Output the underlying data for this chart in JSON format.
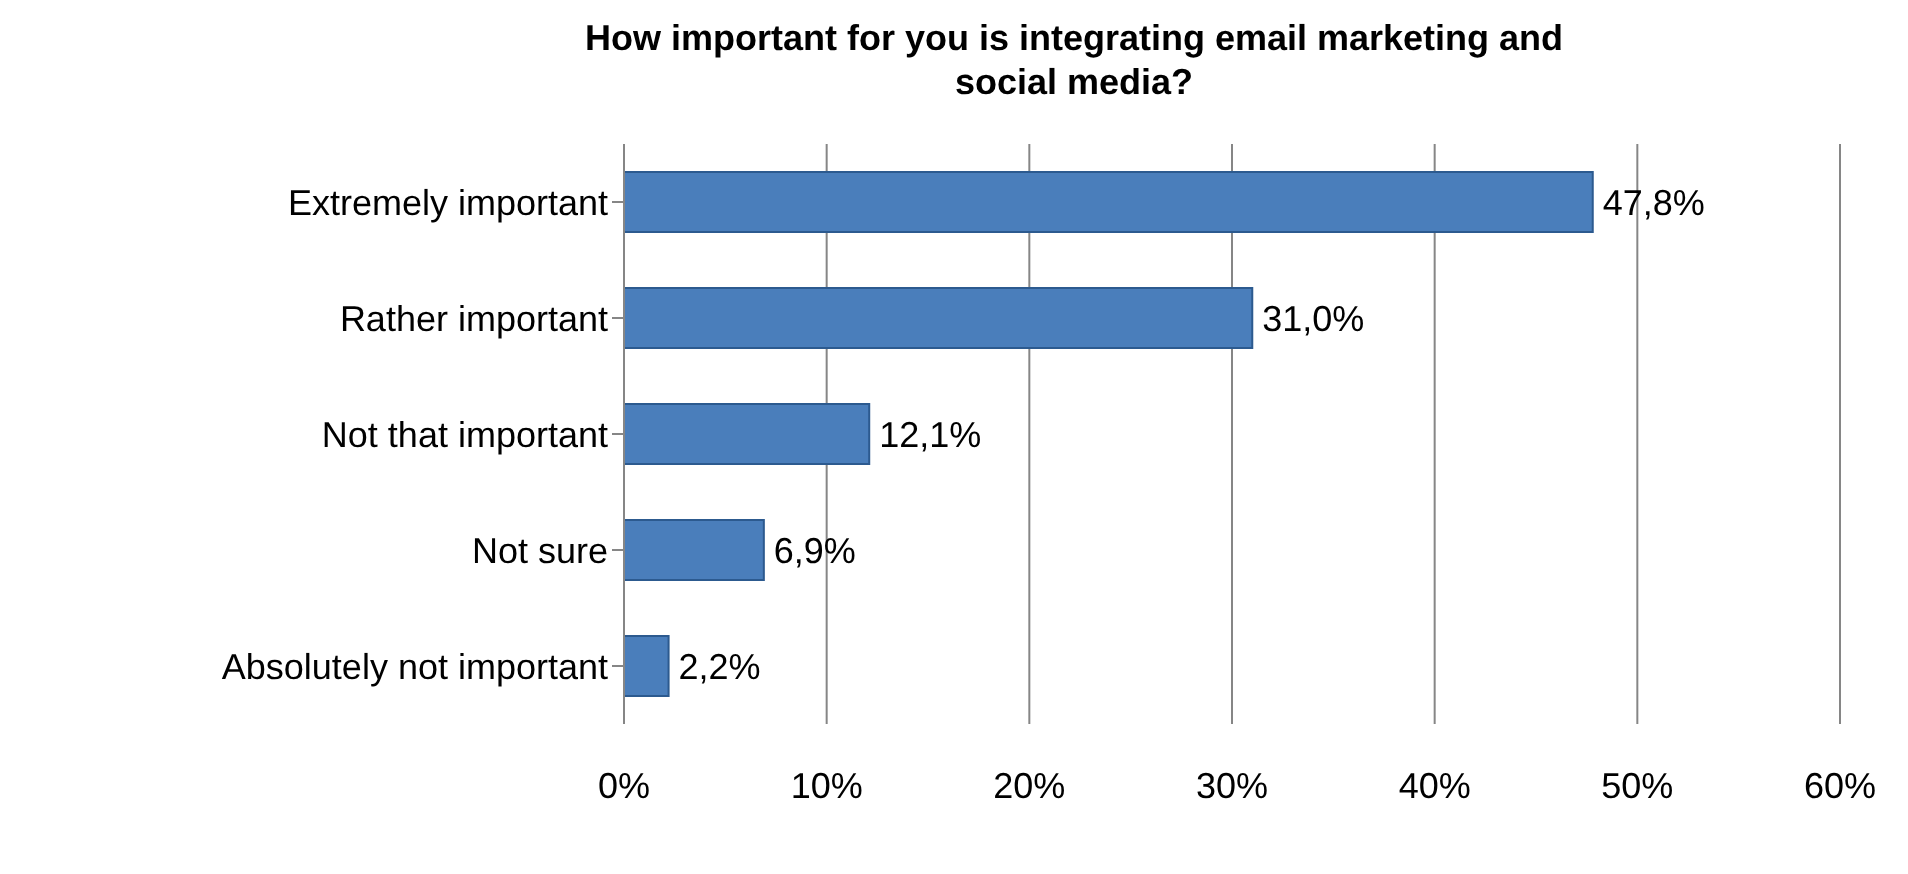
{
  "chart_data": {
    "type": "bar",
    "orientation": "horizontal",
    "title": "How important for you is integrating email marketing and social media?",
    "categories": [
      "Extremely important",
      "Rather important",
      "Not that important",
      "Not sure",
      "Absolutely not important"
    ],
    "values": [
      47.8,
      31.0,
      12.1,
      6.9,
      2.2
    ],
    "value_labels": [
      "47,8%",
      "31,0%",
      "12,1%",
      "6,9%",
      "2,2%"
    ],
    "color": "#4a7ebb",
    "xlim": [
      0,
      60
    ],
    "xticks": [
      {
        "value": 0,
        "label": "0%"
      },
      {
        "value": 10,
        "label": "10%"
      },
      {
        "value": 20,
        "label": "20%"
      },
      {
        "value": 30,
        "label": "30%"
      },
      {
        "value": 40,
        "label": "40%"
      },
      {
        "value": 50,
        "label": "50%"
      },
      {
        "value": 60,
        "label": "60%"
      }
    ],
    "grid": "x",
    "legend": false
  }
}
